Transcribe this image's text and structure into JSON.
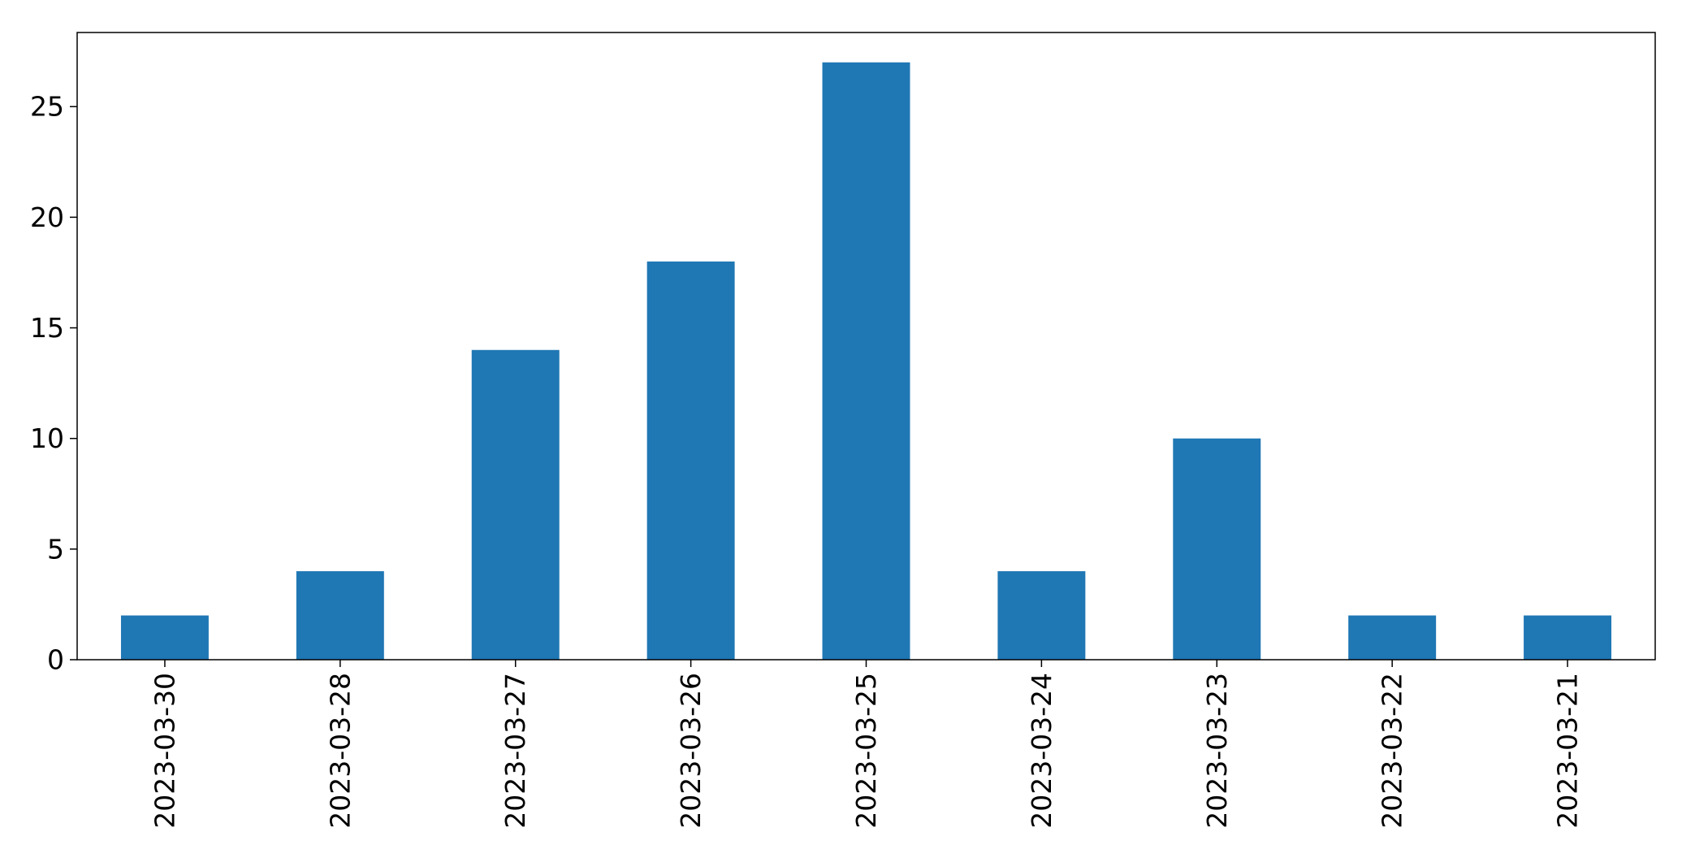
{
  "chart_data": {
    "type": "bar",
    "title": "",
    "xlabel": "",
    "ylabel": "",
    "categories": [
      "2023-03-30",
      "2023-03-28",
      "2023-03-27",
      "2023-03-26",
      "2023-03-25",
      "2023-03-24",
      "2023-03-23",
      "2023-03-22",
      "2023-03-21"
    ],
    "values": [
      2,
      4,
      14,
      18,
      27,
      4,
      10,
      2,
      2
    ],
    "ylim": [
      0,
      28.35
    ],
    "yticks": [
      0,
      5,
      10,
      15,
      20,
      25
    ],
    "grid": false,
    "bar_color": "#1f77b4"
  }
}
